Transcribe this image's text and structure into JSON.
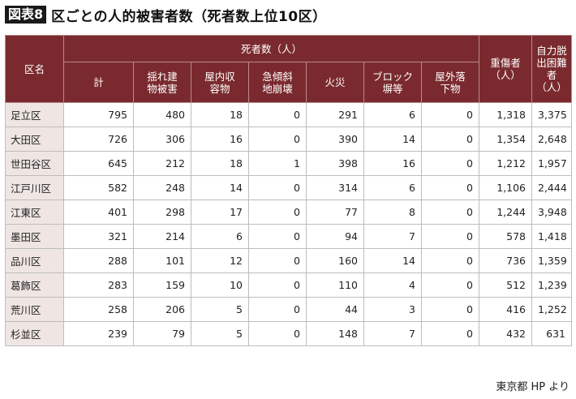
{
  "figure": {
    "badge": "図表8",
    "title": "区ごとの人的被害者数（死者数上位10区）"
  },
  "table": {
    "header": {
      "ward": "区名",
      "deaths_group": "死者数（人）",
      "injured": "重傷者（人）",
      "stranded": "自力脱出困難者（人）",
      "death_columns": [
        "計",
        "揺れ建物被害",
        "屋内収容物",
        "急傾斜地崩壊",
        "火災",
        "ブロック塀等",
        "屋外落下物"
      ]
    },
    "rows": [
      {
        "ward": "足立区",
        "total": "795",
        "shaking": "480",
        "indoor": "18",
        "slope": "0",
        "fire": "291",
        "block": "6",
        "outdoor": "0",
        "injured": "1,318",
        "stranded": "3,375"
      },
      {
        "ward": "大田区",
        "total": "726",
        "shaking": "306",
        "indoor": "16",
        "slope": "0",
        "fire": "390",
        "block": "14",
        "outdoor": "0",
        "injured": "1,354",
        "stranded": "2,648"
      },
      {
        "ward": "世田谷区",
        "total": "645",
        "shaking": "212",
        "indoor": "18",
        "slope": "1",
        "fire": "398",
        "block": "16",
        "outdoor": "0",
        "injured": "1,212",
        "stranded": "1,957"
      },
      {
        "ward": "江戸川区",
        "total": "582",
        "shaking": "248",
        "indoor": "14",
        "slope": "0",
        "fire": "314",
        "block": "6",
        "outdoor": "0",
        "injured": "1,106",
        "stranded": "2,444"
      },
      {
        "ward": "江東区",
        "total": "401",
        "shaking": "298",
        "indoor": "17",
        "slope": "0",
        "fire": "77",
        "block": "8",
        "outdoor": "0",
        "injured": "1,244",
        "stranded": "3,948"
      },
      {
        "ward": "墨田区",
        "total": "321",
        "shaking": "214",
        "indoor": "6",
        "slope": "0",
        "fire": "94",
        "block": "7",
        "outdoor": "0",
        "injured": "578",
        "stranded": "1,418"
      },
      {
        "ward": "品川区",
        "total": "288",
        "shaking": "101",
        "indoor": "12",
        "slope": "0",
        "fire": "160",
        "block": "14",
        "outdoor": "0",
        "injured": "736",
        "stranded": "1,359"
      },
      {
        "ward": "葛飾区",
        "total": "283",
        "shaking": "159",
        "indoor": "10",
        "slope": "0",
        "fire": "110",
        "block": "4",
        "outdoor": "0",
        "injured": "512",
        "stranded": "1,239"
      },
      {
        "ward": "荒川区",
        "total": "258",
        "shaking": "206",
        "indoor": "5",
        "slope": "0",
        "fire": "44",
        "block": "3",
        "outdoor": "0",
        "injured": "416",
        "stranded": "1,252"
      },
      {
        "ward": "杉並区",
        "total": "239",
        "shaking": "79",
        "indoor": "5",
        "slope": "0",
        "fire": "148",
        "block": "7",
        "outdoor": "0",
        "injured": "432",
        "stranded": "631"
      }
    ]
  },
  "source": "東京都 HP より"
}
